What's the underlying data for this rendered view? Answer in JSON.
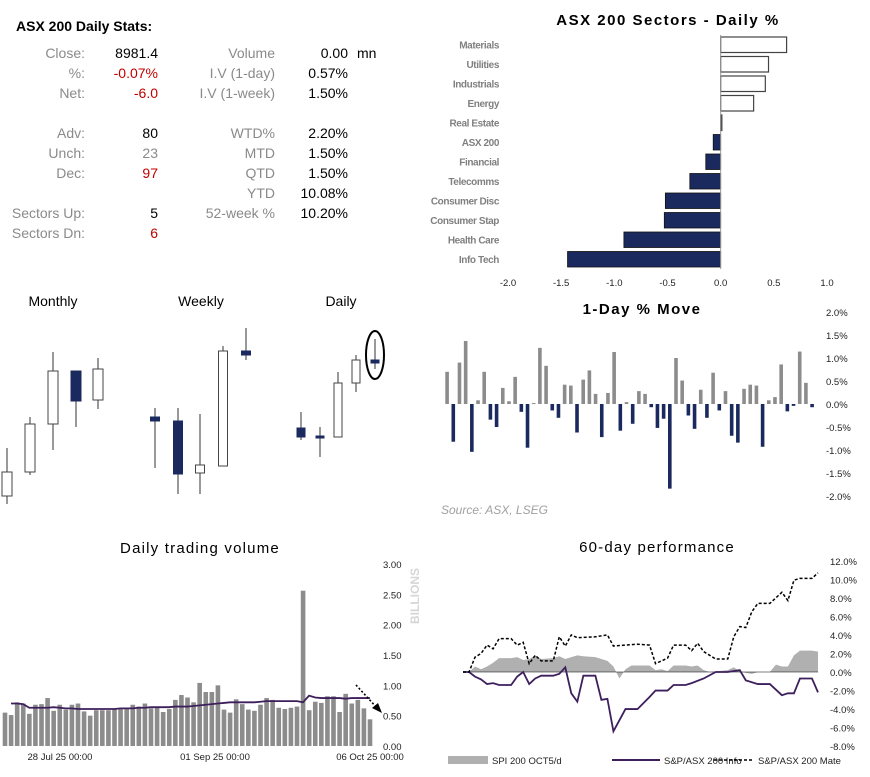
{
  "stats": {
    "title": "ASX 200 Daily Stats:",
    "left": [
      {
        "label": "Close:",
        "value": "8981.4",
        "tone": "black"
      },
      {
        "label": "%:",
        "value": "-0.07%",
        "tone": "red"
      },
      {
        "label": "Net:",
        "value": "-6.0",
        "tone": "red"
      },
      {
        "label": "Adv:",
        "value": "80",
        "tone": "black"
      },
      {
        "label": "Unch:",
        "value": "23",
        "tone": "gray"
      },
      {
        "label": "Dec:",
        "value": "97",
        "tone": "red"
      },
      {
        "label": "Sectors Up:",
        "value": "5",
        "tone": "black"
      },
      {
        "label": "Sectors Dn:",
        "value": "6",
        "tone": "red"
      }
    ],
    "right": [
      {
        "label": "Volume",
        "value": "0.00",
        "unit": "mn"
      },
      {
        "label": "I.V (1-day)",
        "value": "0.57%"
      },
      {
        "label": "I.V (1-week)",
        "value": "1.50%"
      },
      {
        "label": "WTD%",
        "value": "2.20%"
      },
      {
        "label": "MTD",
        "value": "1.50%"
      },
      {
        "label": "QTD",
        "value": "1.50%"
      },
      {
        "label": "YTD",
        "value": "10.08%"
      },
      {
        "label": "52-week %",
        "value": "10.20%"
      }
    ]
  },
  "colors": {
    "navy": "#1b2a5e",
    "gray": "#8c8c8c",
    "purple": "#3d1f5c",
    "red": "#c00000"
  },
  "source": "Source: ASX, LSEG",
  "chart_data": [
    {
      "type": "bar",
      "orientation": "horizontal",
      "title": "ASX 200 Sectors - Daily %",
      "categories": [
        "Materials",
        "Utilities",
        "Industrials",
        "Energy",
        "Real Estate",
        "ASX 200",
        "Financial",
        "Telecomms",
        "Consumer Disc",
        "Consumer Stap",
        "Health Care",
        "Info Tech"
      ],
      "values": [
        0.62,
        0.45,
        0.42,
        0.31,
        0.01,
        -0.07,
        -0.14,
        -0.29,
        -0.52,
        -0.53,
        -0.91,
        -1.44
      ],
      "xlim": [
        -2.0,
        1.0
      ],
      "xticks": [
        "-2.0",
        "-1.5",
        "-1.0",
        "-0.5",
        "0.0",
        "0.5",
        "1.0"
      ],
      "positive_style": "white-outline",
      "negative_color": "#1b2a5e"
    },
    {
      "type": "candlestick",
      "panels": [
        {
          "title": "Monthly",
          "candles": [
            {
              "o": 24,
              "h": 72,
              "l": 16,
              "c": 48
            },
            {
              "o": 48,
              "h": 103,
              "l": 45,
              "c": 96
            },
            {
              "o": 96,
              "h": 168,
              "l": 70,
              "c": 149
            },
            {
              "o": 149,
              "h": 149,
              "l": 93,
              "c": 119
            },
            {
              "o": 120,
              "h": 162,
              "l": 111,
              "c": 151
            }
          ]
        },
        {
          "title": "Weekly",
          "candles": [
            {
              "o": 103,
              "h": 112,
              "l": 52,
              "c": 99
            },
            {
              "o": 99,
              "h": 112,
              "l": 26,
              "c": 46
            },
            {
              "o": 47,
              "h": 106,
              "l": 26,
              "c": 55
            },
            {
              "o": 54,
              "h": 174,
              "l": 54,
              "c": 169
            },
            {
              "o": 169,
              "h": 192,
              "l": 160,
              "c": 165
            }
          ]
        },
        {
          "title": "Daily",
          "candles": [
            {
              "o": 92,
              "h": 108,
              "l": 80,
              "c": 83
            },
            {
              "o": 84,
              "h": 93,
              "l": 63,
              "c": 82
            },
            {
              "o": 83,
              "h": 148,
              "l": 83,
              "c": 137
            },
            {
              "o": 137,
              "h": 165,
              "l": 128,
              "c": 160
            },
            {
              "o": 160,
              "h": 181,
              "l": 151,
              "c": 157,
              "highlighted": true
            }
          ]
        }
      ]
    },
    {
      "type": "bar",
      "title": "1-Day % Move",
      "ylim": [
        -2.0,
        2.0
      ],
      "yticks": [
        "2.0%",
        "1.5%",
        "1.0%",
        "0.5%",
        "0.0%",
        "-0.5%",
        "-1.0%",
        "-1.5%",
        "-2.0%"
      ],
      "values": [
        0.7,
        -0.82,
        0.9,
        1.37,
        -1.04,
        0.08,
        0.7,
        -0.34,
        -0.5,
        0.35,
        0.06,
        0.59,
        -0.17,
        -0.95,
        0.02,
        1.22,
        0.83,
        -0.14,
        -0.3,
        0.42,
        0.4,
        -0.62,
        0.53,
        0.73,
        0.22,
        -0.72,
        0.24,
        1.13,
        -0.58,
        0.04,
        -0.43,
        0.28,
        0.22,
        -0.07,
        -0.52,
        -0.32,
        -1.84,
        1.0,
        0.51,
        -0.25,
        -0.54,
        0.31,
        -0.3,
        0.68,
        -0.14,
        0.28,
        -0.69,
        -0.84,
        0.33,
        0.42,
        0.4,
        -0.93,
        0.08,
        0.15,
        0.86,
        -0.16,
        -0.04,
        1.14,
        0.46,
        -0.07
      ],
      "positive_color": "#8c8c8c",
      "negative_color": "#1b2a5e"
    },
    {
      "type": "bar",
      "title": "Daily trading volume",
      "ylabel": "BILLIONS",
      "ylim": [
        0,
        3.0
      ],
      "yticks": [
        "3.00",
        "2.50",
        "2.00",
        "1.50",
        "1.00",
        "0.50",
        "0.00"
      ],
      "xticks": [
        "28 Jul 25 00:00",
        "01 Sep 25 00:00",
        "06 Oct 25 00:00"
      ],
      "values": [
        0.55,
        0.51,
        0.72,
        0.7,
        0.53,
        0.68,
        0.69,
        0.79,
        0.58,
        0.68,
        0.6,
        0.68,
        0.7,
        0.57,
        0.5,
        0.59,
        0.59,
        0.59,
        0.62,
        0.62,
        0.62,
        0.68,
        0.65,
        0.7,
        0.62,
        0.65,
        0.56,
        0.61,
        0.76,
        0.84,
        0.8,
        0.72,
        1.04,
        0.89,
        0.89,
        1.0,
        0.6,
        0.55,
        0.77,
        0.69,
        0.6,
        0.58,
        0.68,
        0.79,
        0.76,
        0.63,
        0.61,
        0.63,
        0.65,
        2.56,
        0.59,
        0.73,
        0.71,
        0.82,
        0.82,
        0.56,
        0.86,
        0.7,
        0.76,
        0.62,
        0.44
      ],
      "moving_average": [
        0.7,
        0.7,
        0.69,
        0.63,
        0.63,
        0.63,
        0.63,
        0.64,
        0.63,
        0.62,
        0.62,
        0.61,
        0.61,
        0.61,
        0.61,
        0.61,
        0.61,
        0.61,
        0.62,
        0.62,
        0.62,
        0.63,
        0.63,
        0.64,
        0.64,
        0.64,
        0.64,
        0.65,
        0.65,
        0.65,
        0.66,
        0.67,
        0.68,
        0.69,
        0.7,
        0.71,
        0.72,
        0.72,
        0.72,
        0.72,
        0.72,
        0.73,
        0.74,
        0.74,
        0.74,
        0.74,
        0.74,
        0.74,
        0.72,
        0.83,
        0.8,
        0.79,
        0.79,
        0.79,
        0.79,
        0.78,
        0.79,
        0.79,
        0.79,
        0.79
      ],
      "bar_color": "#8c8c8c",
      "line_color": "#3d1f5c"
    },
    {
      "type": "line",
      "title": "60-day performance",
      "ylim": [
        -8.0,
        12.0
      ],
      "yticks": [
        "12.0%",
        "10.0%",
        "8.0%",
        "6.0%",
        "4.0%",
        "2.0%",
        "0.0%",
        "-2.0%",
        "-4.0%",
        "-6.0%",
        "-8.0%"
      ],
      "series": [
        {
          "name": "SPI 200 OCT5/d",
          "style": "area",
          "points": [
            [
              0,
              0
            ],
            [
              1,
              0
            ],
            [
              2,
              0.6
            ],
            [
              3,
              0.3
            ],
            [
              4,
              0.6
            ],
            [
              5,
              1.0
            ],
            [
              6,
              1.5
            ],
            [
              8,
              1.5
            ],
            [
              9,
              1.6
            ],
            [
              10,
              1.3
            ],
            [
              11,
              1.4
            ],
            [
              12,
              1.8
            ],
            [
              13,
              1.4
            ],
            [
              15,
              1.5
            ],
            [
              16,
              1.7
            ],
            [
              17,
              1.4
            ],
            [
              18,
              1.6
            ],
            [
              19,
              1.8
            ],
            [
              20,
              1.7
            ],
            [
              22,
              1.6
            ],
            [
              23,
              1.4
            ],
            [
              24,
              1.2
            ],
            [
              25,
              0.6
            ],
            [
              26,
              -0.7
            ],
            [
              27,
              0.3
            ],
            [
              28,
              0.7
            ],
            [
              31,
              0.7
            ],
            [
              32,
              0.2
            ],
            [
              33,
              0.3
            ],
            [
              34,
              0.1
            ],
            [
              35,
              0.7
            ],
            [
              37,
              0.7
            ],
            [
              38,
              0.6
            ],
            [
              39,
              0.7
            ],
            [
              40,
              0.2
            ],
            [
              41,
              0
            ],
            [
              44,
              0.2
            ],
            [
              45,
              0.5
            ],
            [
              46,
              0.1
            ],
            [
              47,
              -0.1
            ],
            [
              48,
              -0.2
            ],
            [
              49,
              0
            ],
            [
              51,
              0
            ],
            [
              52,
              0.8
            ],
            [
              53,
              0.6
            ],
            [
              54,
              0.6
            ],
            [
              55,
              1.8
            ],
            [
              56,
              2.3
            ],
            [
              58,
              2.3
            ],
            [
              59,
              2.2
            ]
          ]
        },
        {
          "name": "S&P/ASX 200 Info",
          "style": "solid",
          "points": [
            [
              0,
              0
            ],
            [
              1,
              0
            ],
            [
              2,
              -0.5
            ],
            [
              3,
              -0.8
            ],
            [
              4,
              -1.3
            ],
            [
              5,
              -1.2
            ],
            [
              6,
              -1.4
            ],
            [
              8,
              -1.4
            ],
            [
              9,
              -0.5
            ],
            [
              10,
              0
            ],
            [
              11,
              -1.3
            ],
            [
              12,
              -0.7
            ],
            [
              13,
              -0.4
            ],
            [
              15,
              -0.4
            ],
            [
              16,
              -0.2
            ],
            [
              17,
              0.5
            ],
            [
              18,
              -2.3
            ],
            [
              19,
              -3.2
            ],
            [
              20,
              -0.4
            ],
            [
              22,
              -0.4
            ],
            [
              23,
              -3.0
            ],
            [
              24,
              -2.9
            ],
            [
              25,
              -6.4
            ],
            [
              27,
              -4.0
            ],
            [
              29,
              -4.0
            ],
            [
              31,
              -2.7
            ],
            [
              32,
              -2.0
            ],
            [
              34,
              -2.0
            ],
            [
              35,
              -1.4
            ],
            [
              37,
              -1.4
            ],
            [
              38,
              -1.2
            ],
            [
              40,
              -0.7
            ],
            [
              42,
              0
            ],
            [
              44,
              0
            ],
            [
              46,
              0.2
            ],
            [
              47,
              -0.9
            ],
            [
              49,
              -1.3
            ],
            [
              51,
              -1.3
            ],
            [
              53,
              -2.5
            ],
            [
              54,
              -2.3
            ],
            [
              55,
              -2.3
            ],
            [
              56,
              -0.7
            ],
            [
              58,
              -0.7
            ],
            [
              59,
              -2.2
            ]
          ]
        },
        {
          "name": "S&P/ASX 200 Mate",
          "style": "dashed",
          "points": [
            [
              0,
              0
            ],
            [
              1,
              0
            ],
            [
              2,
              1.6
            ],
            [
              3,
              2.0
            ],
            [
              4,
              2.9
            ],
            [
              5,
              2.5
            ],
            [
              6,
              3.6
            ],
            [
              8,
              3.6
            ],
            [
              9,
              2.9
            ],
            [
              10,
              3.2
            ],
            [
              11,
              0.9
            ],
            [
              12,
              1.8
            ],
            [
              13,
              1.2
            ],
            [
              15,
              1.2
            ],
            [
              16,
              3.8
            ],
            [
              17,
              2.8
            ],
            [
              18,
              4.0
            ],
            [
              19,
              3.7
            ],
            [
              22,
              3.8
            ],
            [
              24,
              4.0
            ],
            [
              25,
              2.8
            ],
            [
              27,
              2.9
            ],
            [
              29,
              3.0
            ],
            [
              31,
              2.9
            ],
            [
              32,
              0.9
            ],
            [
              34,
              1.5
            ],
            [
              35,
              2.9
            ],
            [
              37,
              2.9
            ],
            [
              38,
              2.3
            ],
            [
              39,
              3.1
            ],
            [
              40,
              2.2
            ],
            [
              42,
              1.4
            ],
            [
              44,
              1.4
            ],
            [
              45,
              3.8
            ],
            [
              46,
              4.9
            ],
            [
              47,
              4.8
            ],
            [
              48,
              6.5
            ],
            [
              49,
              7.4
            ],
            [
              51,
              7.4
            ],
            [
              53,
              8.6
            ],
            [
              54,
              7.7
            ],
            [
              55,
              9.9
            ],
            [
              56,
              10.1
            ],
            [
              58,
              10.1
            ],
            [
              59,
              10.7
            ]
          ]
        }
      ],
      "legend": "bottom"
    }
  ]
}
